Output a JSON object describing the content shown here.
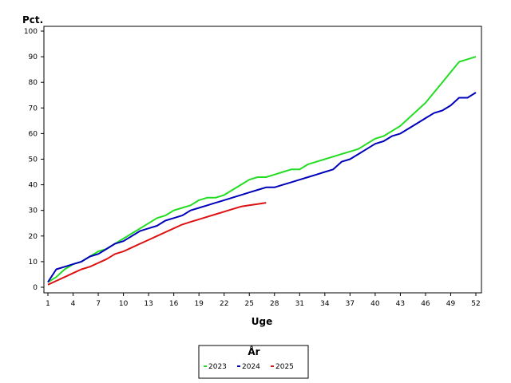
{
  "chart_data": {
    "type": "line",
    "title": "",
    "xlabel": "Uge",
    "ylabel": "Pct.",
    "xlim": [
      1,
      52
    ],
    "ylim": [
      0,
      100
    ],
    "x_ticks": [
      1,
      4,
      7,
      10,
      13,
      16,
      19,
      22,
      25,
      28,
      31,
      34,
      37,
      40,
      43,
      46,
      49,
      52
    ],
    "y_ticks": [
      0,
      10,
      20,
      30,
      40,
      50,
      60,
      70,
      80,
      90,
      100
    ],
    "grid": false,
    "legend": {
      "title": "År",
      "placement": "bottom-center"
    },
    "series": [
      {
        "name": "2023",
        "color": "#22dd22",
        "x": [
          1,
          2,
          3,
          4,
          5,
          6,
          7,
          8,
          9,
          10,
          11,
          12,
          13,
          14,
          15,
          16,
          17,
          18,
          19,
          20,
          21,
          22,
          23,
          24,
          25,
          26,
          27,
          28,
          29,
          30,
          31,
          32,
          33,
          34,
          35,
          36,
          37,
          38,
          39,
          40,
          41,
          42,
          43,
          44,
          45,
          46,
          47,
          48,
          49,
          50,
          51,
          52
        ],
        "y": [
          2,
          4,
          7,
          9,
          10,
          12,
          14,
          15,
          17,
          19,
          21,
          23,
          25,
          27,
          28,
          30,
          31,
          32,
          34,
          35,
          35,
          36,
          38,
          40,
          42,
          43,
          43,
          44,
          45,
          46,
          46,
          48,
          49,
          50,
          51,
          52,
          53,
          54,
          56,
          58,
          59,
          61,
          63,
          66,
          69,
          72,
          76,
          80,
          84,
          88,
          89,
          90
        ]
      },
      {
        "name": "2024",
        "color": "#0000bb",
        "x": [
          1,
          2,
          3,
          4,
          5,
          6,
          7,
          8,
          9,
          10,
          11,
          12,
          13,
          14,
          15,
          16,
          17,
          18,
          19,
          20,
          21,
          22,
          23,
          24,
          25,
          26,
          27,
          28,
          29,
          30,
          31,
          32,
          33,
          34,
          35,
          36,
          37,
          38,
          39,
          40,
          41,
          42,
          43,
          44,
          45,
          46,
          47,
          48,
          49,
          50,
          51,
          52
        ],
        "y": [
          2,
          7,
          8,
          9,
          10,
          12,
          13,
          15,
          17,
          18,
          20,
          22,
          23,
          24,
          26,
          27,
          28,
          30,
          31,
          32,
          33,
          34,
          35,
          36,
          37,
          38,
          39,
          39,
          40,
          41,
          42,
          43,
          44,
          45,
          46,
          49,
          50,
          52,
          54,
          56,
          57,
          59,
          60,
          62,
          64,
          66,
          68,
          69,
          71,
          74,
          74,
          76
        ]
      },
      {
        "name": "2025",
        "color": "#dd1111",
        "x": [
          1,
          2,
          3,
          4,
          5,
          6,
          7,
          8,
          9,
          10,
          11,
          12,
          13,
          14,
          15,
          16,
          17,
          18,
          19,
          20,
          21,
          22,
          23,
          24,
          25,
          26,
          27
        ],
        "y": [
          1,
          2.5,
          4,
          5.5,
          7,
          8,
          9.5,
          11,
          13,
          14,
          15.5,
          17,
          18.5,
          20,
          21.5,
          23,
          24.5,
          25.5,
          26.5,
          27.5,
          28.5,
          29.5,
          30.5,
          31.5,
          32,
          32.5,
          33
        ]
      }
    ]
  }
}
